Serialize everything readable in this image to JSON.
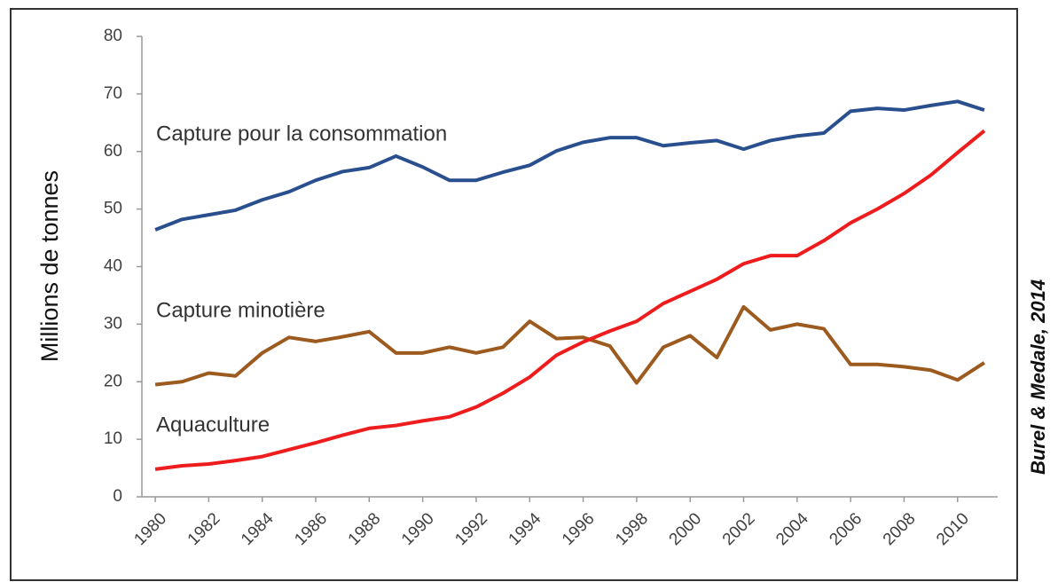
{
  "chart_data": {
    "type": "line",
    "y_label": "Millions de tonnes",
    "source": "Burel & Medale, 2014",
    "x": [
      1980,
      1981,
      1982,
      1983,
      1984,
      1985,
      1986,
      1987,
      1988,
      1989,
      1990,
      1991,
      1992,
      1993,
      1994,
      1995,
      1996,
      1997,
      1998,
      1999,
      2000,
      2001,
      2002,
      2003,
      2004,
      2005,
      2006,
      2007,
      2008,
      2009,
      2010,
      2011
    ],
    "xlim": [
      1979.5,
      2011.5
    ],
    "xticks": [
      1980,
      1982,
      1984,
      1986,
      1988,
      1990,
      1992,
      1994,
      1996,
      1998,
      2000,
      2002,
      2004,
      2006,
      2008,
      2010
    ],
    "ylim": [
      0,
      80
    ],
    "yticks": [
      0,
      10,
      20,
      30,
      40,
      50,
      60,
      70,
      80
    ],
    "grid": false,
    "series": [
      {
        "name": "Capture pour la consommation",
        "color": "#2a4f8f",
        "values": [
          46.4,
          48.2,
          49.0,
          49.8,
          51.6,
          53.0,
          55.0,
          56.5,
          57.2,
          59.2,
          57.3,
          55.0,
          55.0,
          56.4,
          57.6,
          60.1,
          61.6,
          62.4,
          62.4,
          61.0,
          61.5,
          61.9,
          60.4,
          61.9,
          62.7,
          63.2,
          67.0,
          67.5,
          67.2,
          68.0,
          68.7,
          67.2
        ]
      },
      {
        "name": "Capture minotière",
        "color": "#9c5a1e",
        "values": [
          19.5,
          20.0,
          21.5,
          21.0,
          25.0,
          27.7,
          27.0,
          27.8,
          28.7,
          25.0,
          25.0,
          26.0,
          25.0,
          26.0,
          30.5,
          27.5,
          27.7,
          26.2,
          19.8,
          26.0,
          28.0,
          24.2,
          33.0,
          29.0,
          30.0,
          29.2,
          23.0,
          23.0,
          22.6,
          22.0,
          20.3,
          23.3
        ]
      },
      {
        "name": "Aquaculture",
        "color": "#ee1c1c",
        "values": [
          4.8,
          5.4,
          5.7,
          6.3,
          7.0,
          8.2,
          9.4,
          10.7,
          11.9,
          12.4,
          13.2,
          13.9,
          15.6,
          18.0,
          20.8,
          24.6,
          26.9,
          28.8,
          30.5,
          33.6,
          35.7,
          37.8,
          40.5,
          41.9,
          41.9,
          44.5,
          47.6,
          50.0,
          52.7,
          55.9,
          59.8,
          63.6
        ]
      }
    ]
  }
}
